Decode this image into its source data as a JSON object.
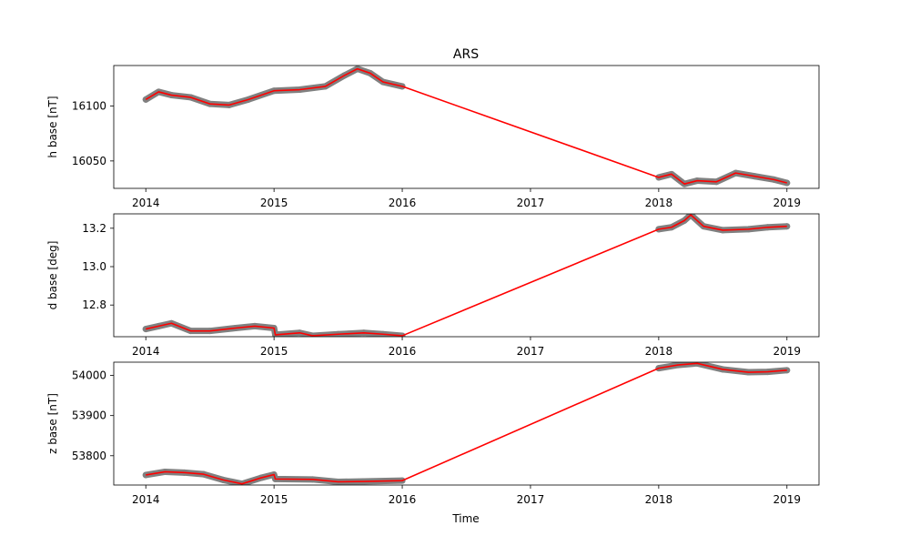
{
  "chart_data": {
    "title": "ARS",
    "xlabel": "Time",
    "x_tick_labels": [
      "2014",
      "2015",
      "2016",
      "2017",
      "2018",
      "2019"
    ],
    "x_tick_values": [
      2014,
      2015,
      2016,
      2017,
      2018,
      2019
    ],
    "xlim": [
      2013.75,
      2019.25
    ],
    "colors": {
      "points": "#808080",
      "line": "#ff0000",
      "axes": "#000000"
    },
    "subplots": [
      {
        "type": "line",
        "ylabel": "h base [nT]",
        "ylim": [
          16025,
          16137
        ],
        "y_ticks": [
          16050,
          16100
        ],
        "y_tick_labels": [
          "16050",
          "16100"
        ],
        "x": [
          2014.0,
          2014.1,
          2014.2,
          2014.35,
          2014.5,
          2014.65,
          2014.8,
          2015.0,
          2015.2,
          2015.4,
          2015.55,
          2015.65,
          2015.75,
          2015.85,
          2016.0,
          2018.0,
          2018.1,
          2018.2,
          2018.3,
          2018.45,
          2018.6,
          2018.75,
          2018.9,
          2019.0
        ],
        "y": [
          16106,
          16113,
          16110,
          16108,
          16102,
          16101,
          16106,
          16114,
          16115,
          16118,
          16128,
          16134,
          16130,
          16122,
          16118,
          16035,
          16038,
          16029,
          16032,
          16031,
          16039,
          16036,
          16033,
          16030
        ]
      },
      {
        "type": "line",
        "ylabel": "d base [deg]",
        "ylim": [
          12.635,
          13.275
        ],
        "y_ticks": [
          12.8,
          13.0,
          13.2
        ],
        "y_tick_labels": [
          "12.8",
          "13.0",
          "13.2"
        ],
        "x": [
          2014.0,
          2014.1,
          2014.2,
          2014.35,
          2014.5,
          2014.7,
          2014.85,
          2015.0,
          2015.01,
          2015.2,
          2015.3,
          2015.5,
          2015.7,
          2015.85,
          2016.0,
          2018.0,
          2018.1,
          2018.2,
          2018.25,
          2018.35,
          2018.5,
          2018.7,
          2018.85,
          2019.0
        ],
        "y": [
          12.675,
          12.69,
          12.705,
          12.665,
          12.665,
          12.68,
          12.69,
          12.68,
          12.645,
          12.655,
          12.64,
          12.648,
          12.655,
          12.648,
          12.64,
          13.195,
          13.205,
          13.24,
          13.27,
          13.21,
          13.19,
          13.195,
          13.205,
          13.21
        ]
      },
      {
        "type": "line",
        "ylabel": "z base [nT]",
        "ylim": [
          53727,
          54033
        ],
        "y_ticks": [
          53800,
          53900,
          54000
        ],
        "y_tick_labels": [
          "53800",
          "53900",
          "54000"
        ],
        "x": [
          2014.0,
          2014.15,
          2014.3,
          2014.45,
          2014.6,
          2014.75,
          2014.9,
          2015.0,
          2015.01,
          2015.3,
          2015.5,
          2015.7,
          2016.0,
          2018.0,
          2018.15,
          2018.3,
          2018.5,
          2018.7,
          2018.85,
          2019.0
        ],
        "y": [
          53752,
          53760,
          53758,
          53754,
          53740,
          53730,
          53745,
          53753,
          53742,
          53741,
          53735,
          53736,
          53738,
          54018,
          54026,
          54030,
          54015,
          54008,
          54009,
          54013
        ]
      }
    ]
  }
}
